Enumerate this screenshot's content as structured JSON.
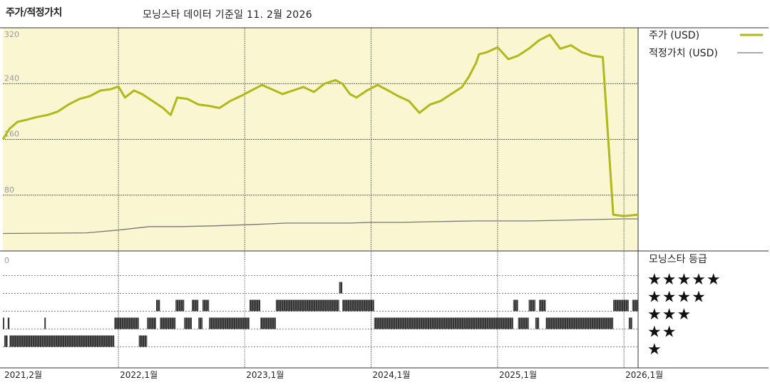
{
  "header": {
    "title": "주가/적정가치",
    "subtitle": "모닝스타 데이터 기준일 11. 2월 2026"
  },
  "colors": {
    "price": "#b1b81a",
    "fair_value": "#777777",
    "panel_bg": "#faf6d2",
    "rating_bar": "#111111"
  },
  "chart_data": [
    {
      "type": "line",
      "ylim": [
        0,
        320
      ],
      "yticks": [
        320,
        240,
        160,
        80,
        0
      ],
      "x_range": [
        "2021-02-01",
        "2026-02-11"
      ],
      "xticks": [
        "2021,2월",
        "2022,1월",
        "2023,1월",
        "2024,1월",
        "2025,1월",
        "2026,1월"
      ],
      "xtick_dates": [
        "2021-02-01",
        "2022-01-01",
        "2023-01-01",
        "2024-01-01",
        "2025-01-01",
        "2026-01-01"
      ],
      "grid": true,
      "legend_position": "top-right",
      "series": [
        {
          "name": "주가 (USD)",
          "x": [
            "2021-02-01",
            "2021-02-20",
            "2021-03-15",
            "2021-04-10",
            "2021-05-10",
            "2021-06-10",
            "2021-07-10",
            "2021-08-10",
            "2021-09-10",
            "2021-10-10",
            "2021-11-10",
            "2021-12-10",
            "2022-01-01",
            "2022-01-20",
            "2022-02-15",
            "2022-03-10",
            "2022-04-10",
            "2022-05-10",
            "2022-06-01",
            "2022-06-20",
            "2022-07-20",
            "2022-08-20",
            "2022-09-20",
            "2022-10-20",
            "2022-11-20",
            "2022-12-20",
            "2023-01-20",
            "2023-02-20",
            "2023-03-20",
            "2023-04-20",
            "2023-05-20",
            "2023-06-20",
            "2023-07-20",
            "2023-08-20",
            "2023-09-20",
            "2023-10-10",
            "2023-11-01",
            "2023-11-20",
            "2023-12-20",
            "2024-01-20",
            "2024-02-20",
            "2024-03-20",
            "2024-04-20",
            "2024-05-20",
            "2024-06-20",
            "2024-07-20",
            "2024-08-20",
            "2024-09-20",
            "2024-10-10",
            "2024-10-31",
            "2024-11-08",
            "2024-12-01",
            "2025-01-01",
            "2025-02-01",
            "2025-03-01",
            "2025-04-01",
            "2025-05-01",
            "2025-06-01",
            "2025-07-01",
            "2025-08-01",
            "2025-09-01",
            "2025-10-01",
            "2025-11-01",
            "2025-12-01",
            "2026-01-01",
            "2026-02-11"
          ],
          "y": [
            160,
            175,
            185,
            188,
            192,
            195,
            200,
            210,
            218,
            222,
            230,
            232,
            236,
            220,
            230,
            225,
            215,
            205,
            195,
            220,
            218,
            210,
            208,
            205,
            215,
            222,
            230,
            238,
            232,
            225,
            230,
            235,
            228,
            240,
            245,
            240,
            225,
            220,
            230,
            238,
            230,
            222,
            215,
            198,
            210,
            215,
            225,
            235,
            250,
            270,
            282,
            285,
            292,
            275,
            280,
            290,
            302,
            310,
            290,
            295,
            285,
            280,
            278,
            52,
            50,
            52
          ]
        },
        {
          "name": "적정가치 (USD)",
          "x": [
            "2021-02-01",
            "2021-10-01",
            "2022-01-01",
            "2022-04-01",
            "2022-07-01",
            "2022-10-01",
            "2023-02-01",
            "2023-05-01",
            "2023-08-01",
            "2023-11-01",
            "2024-01-01",
            "2024-04-01",
            "2024-07-01",
            "2024-11-01",
            "2025-01-01",
            "2025-04-01",
            "2025-07-01",
            "2025-10-01",
            "2026-01-01",
            "2026-02-11"
          ],
          "y": [
            25,
            26,
            30,
            35,
            35,
            36,
            38,
            40,
            40,
            40,
            41,
            41,
            42,
            43,
            43,
            43,
            44,
            45,
            46,
            46
          ]
        }
      ]
    },
    {
      "type": "bar",
      "title": "모닝스타 등급",
      "categories": [
        "★★★★★",
        "★★★★",
        "★★★",
        "★★",
        "★"
      ],
      "periods": [
        {
          "start": "2021-02-01",
          "end": "2021-02-05",
          "rating": 2
        },
        {
          "start": "2021-02-05",
          "end": "2021-02-15",
          "rating": 1
        },
        {
          "start": "2021-02-15",
          "end": "2021-02-20",
          "rating": 2
        },
        {
          "start": "2021-02-20",
          "end": "2021-12-20",
          "rating": 1
        },
        {
          "start": "2021-06-01",
          "end": "2021-06-03",
          "rating": 2
        },
        {
          "start": "2021-12-20",
          "end": "2022-03-01",
          "rating": 2
        },
        {
          "start": "2022-03-01",
          "end": "2022-03-25",
          "rating": 1
        },
        {
          "start": "2022-03-25",
          "end": "2022-04-20",
          "rating": 2
        },
        {
          "start": "2022-04-20",
          "end": "2022-05-01",
          "rating": 3
        },
        {
          "start": "2022-05-01",
          "end": "2022-06-15",
          "rating": 2
        },
        {
          "start": "2022-06-15",
          "end": "2022-07-10",
          "rating": 3
        },
        {
          "start": "2022-07-10",
          "end": "2022-08-01",
          "rating": 2
        },
        {
          "start": "2022-08-01",
          "end": "2022-08-20",
          "rating": 3
        },
        {
          "start": "2022-08-20",
          "end": "2022-09-01",
          "rating": 2
        },
        {
          "start": "2022-09-01",
          "end": "2022-09-20",
          "rating": 3
        },
        {
          "start": "2022-09-20",
          "end": "2023-01-15",
          "rating": 2
        },
        {
          "start": "2023-01-15",
          "end": "2023-02-15",
          "rating": 3
        },
        {
          "start": "2023-02-15",
          "end": "2023-04-01",
          "rating": 2
        },
        {
          "start": "2023-04-01",
          "end": "2023-10-01",
          "rating": 3
        },
        {
          "start": "2023-10-01",
          "end": "2023-10-10",
          "rating": 4
        },
        {
          "start": "2023-10-10",
          "end": "2024-01-10",
          "rating": 3
        },
        {
          "start": "2024-01-10",
          "end": "2025-02-15",
          "rating": 2
        },
        {
          "start": "2025-02-15",
          "end": "2025-03-01",
          "rating": 3
        },
        {
          "start": "2025-03-01",
          "end": "2025-04-01",
          "rating": 2
        },
        {
          "start": "2025-04-01",
          "end": "2025-04-20",
          "rating": 3
        },
        {
          "start": "2025-04-20",
          "end": "2025-05-01",
          "rating": 2
        },
        {
          "start": "2025-05-01",
          "end": "2025-05-20",
          "rating": 3
        },
        {
          "start": "2025-05-20",
          "end": "2025-12-01",
          "rating": 2
        },
        {
          "start": "2025-12-01",
          "end": "2026-01-15",
          "rating": 3
        },
        {
          "start": "2026-01-15",
          "end": "2026-01-25",
          "rating": 2
        },
        {
          "start": "2026-01-25",
          "end": "2026-02-11",
          "rating": 3
        }
      ]
    }
  ]
}
